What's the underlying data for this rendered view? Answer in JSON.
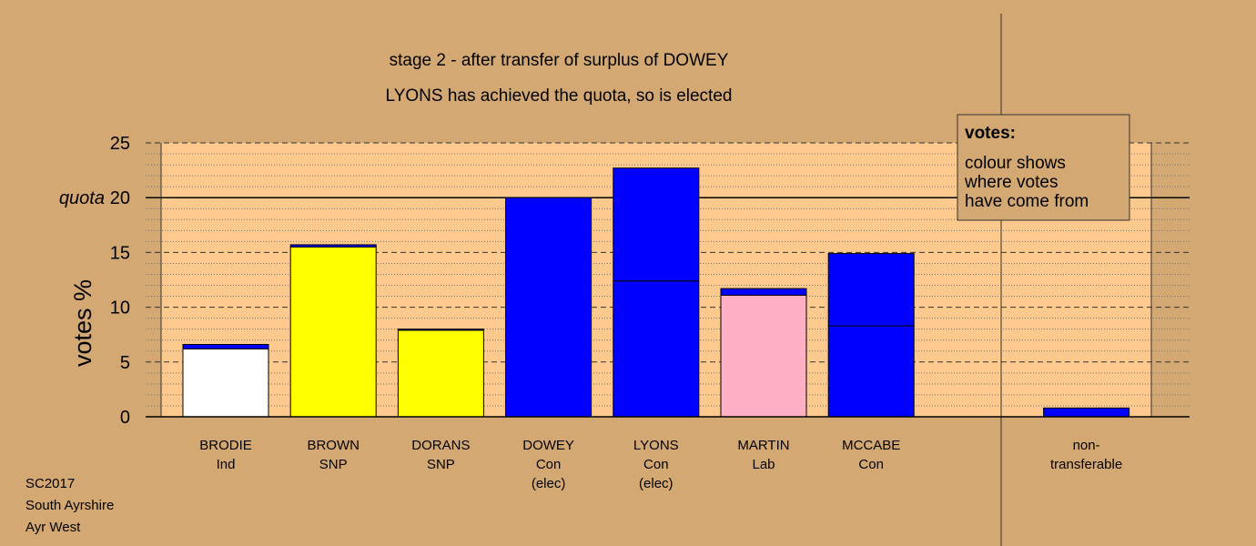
{
  "chart_data": {
    "type": "stacked-bar",
    "title": "stage 2 - after transfer of surplus of DOWEY",
    "subtitle": "LYONS has achieved the quota, so is elected",
    "y_label": "votes %",
    "categories": [
      [
        "BRODIE",
        "Ind"
      ],
      [
        "BROWN",
        "SNP"
      ],
      [
        "DORANS",
        "SNP"
      ],
      [
        "DOWEY",
        "Con",
        "(elec)"
      ],
      [
        "LYONS",
        "Con",
        "(elec)"
      ],
      [
        "MARTIN",
        "Lab"
      ],
      [
        "MCCABE",
        "Con"
      ],
      null,
      [
        "non-",
        "transferable"
      ]
    ],
    "series": [
      {
        "colors": [
          "#ffffff",
          "#ffff00",
          "#ffff00",
          "#0000ff",
          "#0000ff",
          "#ffb0c4",
          "#0000ff",
          null,
          "#0000ff"
        ],
        "values": [
          6.2,
          15.5,
          7.9,
          20,
          12.4,
          11.1,
          8.3,
          null,
          0.8
        ]
      },
      {
        "color": "#0000ff",
        "values": [
          0.4,
          0.2,
          0.1,
          null,
          10.3,
          0.6,
          6.6,
          null,
          null
        ]
      }
    ],
    "ylim": [
      0,
      25
    ],
    "yticks": [
      0,
      5,
      10,
      15,
      20,
      25
    ],
    "grid": true,
    "minor_grid": true,
    "quota": {
      "label": "quota",
      "value": 20
    },
    "legend": {
      "title": "votes:",
      "lines": [
        "colour shows",
        "where votes",
        "have come from"
      ]
    },
    "footer": [
      "SC2017",
      "South Ayrshire",
      "Ayr West"
    ]
  }
}
